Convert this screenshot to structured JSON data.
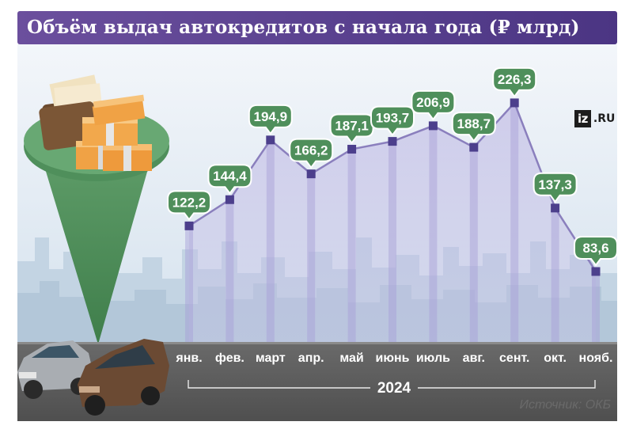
{
  "title": "Объём выдач автокредитов с начала года (₽ млрд)",
  "logo": {
    "box": "iz",
    "suffix": ".RU"
  },
  "source": "Источник: ОКБ",
  "year_label": "2024",
  "colors": {
    "header": "#5a4090",
    "line": "#8a7fbd",
    "marker": "#4c3f8c",
    "bubble": "#4f8f5b",
    "road": "#5c5c5c",
    "sky": "#dfe9f2"
  },
  "icons": [
    "wallet-icon",
    "money-stack-icon",
    "location-pin-icon",
    "car-silver-icon",
    "car-brown-icon",
    "city-skyline-icon"
  ],
  "chart_data": {
    "type": "line",
    "title": "Объём выдач автокредитов с начала года (₽ млрд)",
    "categories": [
      "янв.",
      "фев.",
      "март",
      "апр.",
      "май",
      "июнь",
      "июль",
      "авг.",
      "сент.",
      "окт.",
      "нояб."
    ],
    "values": [
      122.2,
      144.4,
      194.9,
      166.2,
      187.1,
      193.7,
      206.9,
      188.7,
      226.3,
      137.3,
      83.6
    ],
    "value_labels": [
      "122,2",
      "144,4",
      "194,9",
      "166,2",
      "187,1",
      "193,7",
      "206,9",
      "188,7",
      "226,3",
      "137,3",
      "83,6"
    ],
    "x_group_label": "2024",
    "xlabel": "",
    "ylabel": "",
    "grid": false,
    "legend": "none"
  }
}
